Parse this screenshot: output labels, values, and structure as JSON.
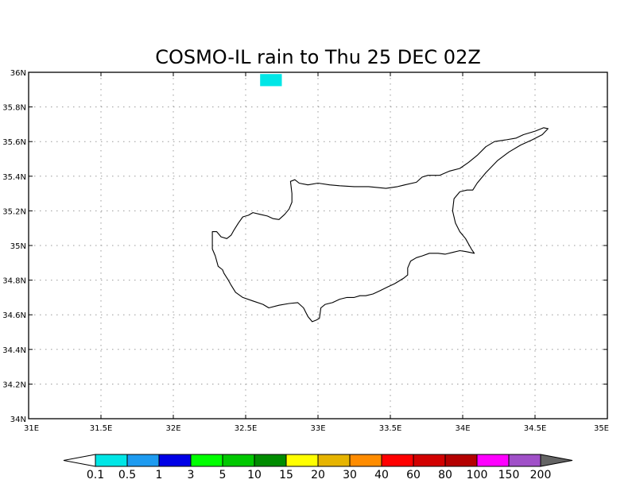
{
  "title": "COSMO-IL rain to Thu 25 DEC 02Z",
  "map": {
    "lon_range": [
      31,
      35
    ],
    "lat_range": [
      34,
      36
    ],
    "lon_ticks": [
      {
        "value": 31,
        "label": "31E"
      },
      {
        "value": 31.5,
        "label": "31.5E"
      },
      {
        "value": 32,
        "label": "32E"
      },
      {
        "value": 32.5,
        "label": "32.5E"
      },
      {
        "value": 33,
        "label": "33E"
      },
      {
        "value": 33.5,
        "label": "33.5E"
      },
      {
        "value": 34,
        "label": "34E"
      },
      {
        "value": 34.5,
        "label": "34.5E"
      },
      {
        "value": 35,
        "label": "35E"
      }
    ],
    "lat_ticks": [
      {
        "value": 34,
        "label": "34N"
      },
      {
        "value": 34.2,
        "label": "34.2N"
      },
      {
        "value": 34.4,
        "label": "34.4N"
      },
      {
        "value": 34.6,
        "label": "34.6N"
      },
      {
        "value": 34.8,
        "label": "34.8N"
      },
      {
        "value": 35,
        "label": "35N"
      },
      {
        "value": 35.2,
        "label": "35.2N"
      },
      {
        "value": 35.4,
        "label": "35.4N"
      },
      {
        "value": 35.6,
        "label": "35.6N"
      },
      {
        "value": 35.8,
        "label": "35.8N"
      },
      {
        "value": 36,
        "label": "36N"
      }
    ],
    "grid": true,
    "coastline_name": "Cyprus",
    "coastline": [
      [
        32.27,
        35.08
      ],
      [
        32.3,
        35.08
      ],
      [
        32.33,
        35.05
      ],
      [
        32.37,
        35.04
      ],
      [
        32.4,
        35.06
      ],
      [
        32.42,
        35.09
      ],
      [
        32.45,
        35.13
      ],
      [
        32.48,
        35.165
      ],
      [
        32.52,
        35.175
      ],
      [
        32.55,
        35.19
      ],
      [
        32.6,
        35.18
      ],
      [
        32.65,
        35.17
      ],
      [
        32.69,
        35.155
      ],
      [
        32.73,
        35.15
      ],
      [
        32.77,
        35.18
      ],
      [
        32.8,
        35.21
      ],
      [
        32.82,
        35.25
      ],
      [
        32.82,
        35.3
      ],
      [
        32.81,
        35.37
      ],
      [
        32.84,
        35.38
      ],
      [
        32.87,
        35.36
      ],
      [
        32.93,
        35.35
      ],
      [
        33.0,
        35.36
      ],
      [
        33.08,
        35.35
      ],
      [
        33.15,
        35.345
      ],
      [
        33.25,
        35.34
      ],
      [
        33.35,
        35.34
      ],
      [
        33.47,
        35.33
      ],
      [
        33.55,
        35.34
      ],
      [
        33.6,
        35.35
      ],
      [
        33.68,
        35.365
      ],
      [
        33.72,
        35.395
      ],
      [
        33.76,
        35.405
      ],
      [
        33.84,
        35.405
      ],
      [
        33.91,
        35.43
      ],
      [
        33.98,
        35.445
      ],
      [
        34.04,
        35.48
      ],
      [
        34.1,
        35.52
      ],
      [
        34.16,
        35.57
      ],
      [
        34.22,
        35.6
      ],
      [
        34.3,
        35.61
      ],
      [
        34.37,
        35.62
      ],
      [
        34.42,
        35.64
      ],
      [
        34.5,
        35.66
      ],
      [
        34.56,
        35.68
      ],
      [
        34.59,
        35.675
      ],
      [
        34.55,
        35.64
      ],
      [
        34.48,
        35.61
      ],
      [
        34.4,
        35.58
      ],
      [
        34.32,
        35.54
      ],
      [
        34.24,
        35.49
      ],
      [
        34.16,
        35.42
      ],
      [
        34.1,
        35.36
      ],
      [
        34.07,
        35.32
      ],
      [
        34.03,
        35.32
      ],
      [
        33.98,
        35.31
      ],
      [
        33.94,
        35.27
      ],
      [
        33.93,
        35.2
      ],
      [
        33.95,
        35.13
      ],
      [
        33.98,
        35.08
      ],
      [
        34.02,
        35.04
      ],
      [
        34.06,
        34.98
      ],
      [
        34.08,
        34.955
      ],
      [
        34.02,
        34.965
      ],
      [
        33.98,
        34.97
      ],
      [
        33.93,
        34.96
      ],
      [
        33.88,
        34.95
      ],
      [
        33.83,
        34.955
      ],
      [
        33.77,
        34.955
      ],
      [
        33.72,
        34.94
      ],
      [
        33.68,
        34.93
      ],
      [
        33.64,
        34.91
      ],
      [
        33.62,
        34.87
      ],
      [
        33.62,
        34.83
      ],
      [
        33.59,
        34.81
      ],
      [
        33.53,
        34.78
      ],
      [
        33.48,
        34.76
      ],
      [
        33.43,
        34.74
      ],
      [
        33.38,
        34.72
      ],
      [
        33.33,
        34.71
      ],
      [
        33.29,
        34.71
      ],
      [
        33.25,
        34.7
      ],
      [
        33.2,
        34.7
      ],
      [
        33.15,
        34.69
      ],
      [
        33.1,
        34.67
      ],
      [
        33.05,
        34.66
      ],
      [
        33.02,
        34.64
      ],
      [
        33.01,
        34.58
      ],
      [
        32.99,
        34.57
      ],
      [
        32.96,
        34.56
      ],
      [
        32.93,
        34.59
      ],
      [
        32.9,
        34.64
      ],
      [
        32.86,
        34.67
      ],
      [
        32.8,
        34.665
      ],
      [
        32.73,
        34.655
      ],
      [
        32.66,
        34.64
      ],
      [
        32.62,
        34.66
      ],
      [
        32.55,
        34.68
      ],
      [
        32.48,
        34.7
      ],
      [
        32.43,
        34.73
      ],
      [
        32.4,
        34.77
      ],
      [
        32.38,
        34.8
      ],
      [
        32.35,
        34.84
      ],
      [
        32.34,
        34.86
      ],
      [
        32.31,
        34.88
      ],
      [
        32.29,
        34.94
      ],
      [
        32.27,
        34.98
      ],
      [
        32.27,
        35.04
      ],
      [
        32.27,
        35.08
      ]
    ],
    "rain_cells": [
      {
        "lon_min": 32.6,
        "lon_max": 32.75,
        "lat_min": 35.92,
        "lat_max": 35.99,
        "color": "#00e6e6"
      }
    ]
  },
  "colorbar": {
    "bins": [
      {
        "color": "#00e6e6"
      },
      {
        "color": "#1e9bf0"
      },
      {
        "color": "#0000e6"
      },
      {
        "color": "#00ff00"
      },
      {
        "color": "#00c800"
      },
      {
        "color": "#008c00"
      },
      {
        "color": "#ffff00"
      },
      {
        "color": "#e6b400"
      },
      {
        "color": "#ff8c00"
      },
      {
        "color": "#ff0000"
      },
      {
        "color": "#d20000"
      },
      {
        "color": "#b40000"
      },
      {
        "color": "#ff00ff"
      },
      {
        "color": "#a050c8"
      }
    ],
    "under_color": "#ffffff",
    "over_color": "#646464",
    "labels": [
      "0.1",
      "0.5",
      "1",
      "3",
      "5",
      "10",
      "15",
      "20",
      "30",
      "40",
      "60",
      "80",
      "100",
      "150",
      "200"
    ]
  }
}
